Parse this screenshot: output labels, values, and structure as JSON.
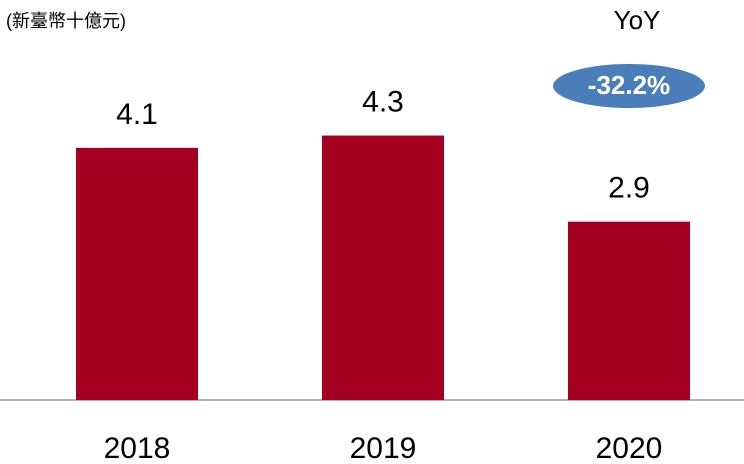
{
  "chart_data": {
    "type": "bar",
    "subtitle": "(新臺幣十億元)",
    "categories": [
      "2018",
      "2019",
      "2020"
    ],
    "values": [
      4.1,
      4.3,
      2.9
    ],
    "color": "#a50021",
    "annotation_label": "YoY",
    "annotation_badge": "-32.2%",
    "badge_color": "#4a7ebb"
  }
}
